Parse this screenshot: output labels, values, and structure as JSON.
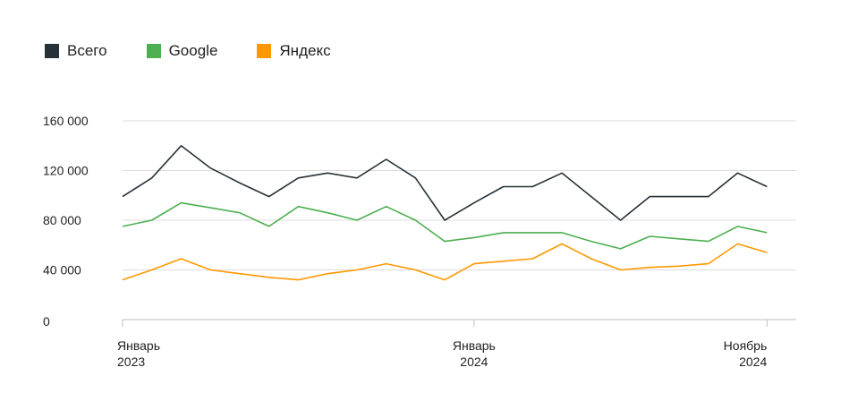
{
  "chart_data": {
    "type": "line",
    "x": [
      "2023-01",
      "2023-02",
      "2023-03",
      "2023-04",
      "2023-05",
      "2023-06",
      "2023-07",
      "2023-08",
      "2023-09",
      "2023-10",
      "2023-11",
      "2023-12",
      "2024-01",
      "2024-02",
      "2024-03",
      "2024-04",
      "2024-05",
      "2024-06",
      "2024-07",
      "2024-08",
      "2024-09",
      "2024-10",
      "2024-11",
      "2024-12"
    ],
    "series": [
      {
        "name": "Всего",
        "color": "#263238",
        "values": [
          99000,
          114000,
          140000,
          122000,
          110000,
          99000,
          114000,
          118000,
          114000,
          129000,
          114000,
          80000,
          94000,
          107000,
          107000,
          118000,
          99000,
          80000,
          99000,
          99000,
          99000,
          118000,
          107000,
          null
        ]
      },
      {
        "name": "Google",
        "color": "#4caf50",
        "values": [
          75000,
          80000,
          94000,
          90000,
          86000,
          75000,
          91000,
          86000,
          80000,
          91000,
          80000,
          63000,
          66000,
          70000,
          70000,
          70000,
          63000,
          57000,
          67000,
          65000,
          63000,
          75000,
          70000,
          null
        ]
      },
      {
        "name": "Яндекс",
        "color": "#ff9800",
        "values": [
          32000,
          40000,
          49000,
          40000,
          37000,
          34000,
          32000,
          37000,
          40000,
          45000,
          40000,
          32000,
          45000,
          47000,
          49000,
          61000,
          49000,
          40000,
          42000,
          43000,
          45000,
          61000,
          54000,
          null
        ]
      }
    ],
    "y_ticks": [
      "0",
      "40 000",
      "80 000",
      "120 000",
      "160 000"
    ],
    "ylim": [
      0,
      160000
    ],
    "x_tick_labels": [
      {
        "x": "2023-01",
        "line1": "Январь",
        "line2": "2023"
      },
      {
        "x": "2024-01",
        "line1": "Январь",
        "line2": "2024"
      },
      {
        "x": "2024-11",
        "line1": "Ноябрь",
        "line2": "2024"
      }
    ],
    "grid": true,
    "legend_position": "top-left"
  }
}
